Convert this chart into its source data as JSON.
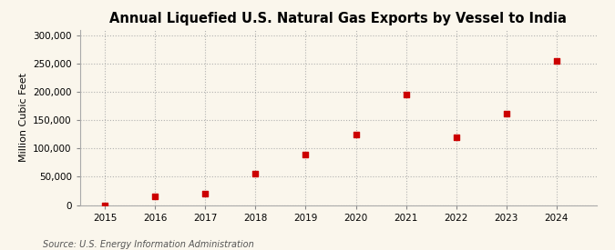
{
  "title": "Annual Liquefied U.S. Natural Gas Exports by Vessel to India",
  "ylabel": "Million Cubic Feet",
  "source": "Source: U.S. Energy Information Administration",
  "years": [
    2015,
    2016,
    2017,
    2018,
    2019,
    2020,
    2021,
    2022,
    2023,
    2024
  ],
  "values": [
    0,
    15000,
    20000,
    55000,
    90000,
    125000,
    195000,
    120000,
    162000,
    255000
  ],
  "xlim": [
    2014.5,
    2024.8
  ],
  "ylim": [
    0,
    310000
  ],
  "yticks": [
    0,
    50000,
    100000,
    150000,
    200000,
    250000,
    300000
  ],
  "xticks": [
    2015,
    2016,
    2017,
    2018,
    2019,
    2020,
    2021,
    2022,
    2023,
    2024
  ],
  "marker_color": "#cc0000",
  "marker": "s",
  "marker_size": 4,
  "background_color": "#faf6ec",
  "grid_color": "#aaaaaa",
  "title_fontsize": 10.5,
  "label_fontsize": 8,
  "tick_fontsize": 7.5,
  "source_fontsize": 7
}
